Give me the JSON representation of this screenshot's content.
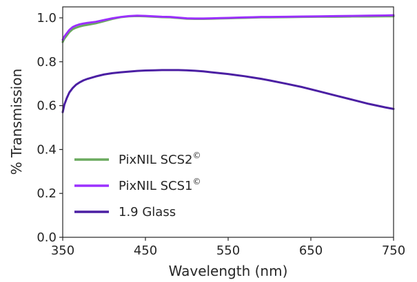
{
  "chart_data": {
    "type": "line",
    "xlabel": "Wavelength (nm)",
    "ylabel": "% Transmission",
    "xlim": [
      350,
      750
    ],
    "ylim": [
      0.0,
      1.05
    ],
    "xticks": [
      "350",
      "450",
      "550",
      "650",
      "750"
    ],
    "yticks": [
      "0.0",
      "0.2",
      "0.4",
      "0.6",
      "0.8",
      "1.0"
    ],
    "grid": false,
    "legend_position": "lower-left",
    "series": [
      {
        "name": "PixNIL SCS2",
        "name_superscript": "©",
        "color": "#6aaa5e",
        "x": [
          350,
          352,
          355,
          358,
          362,
          366,
          370,
          375,
          380,
          390,
          400,
          410,
          420,
          430,
          440,
          450,
          460,
          470,
          480,
          490,
          500,
          510,
          520,
          530,
          540,
          550,
          560,
          570,
          580,
          590,
          600,
          620,
          640,
          660,
          680,
          700,
          720,
          740,
          750
        ],
        "y": [
          0.89,
          0.905,
          0.92,
          0.935,
          0.948,
          0.955,
          0.96,
          0.965,
          0.968,
          0.975,
          0.985,
          0.995,
          1.003,
          1.007,
          1.008,
          1.007,
          1.005,
          1.003,
          1.002,
          0.999,
          0.996,
          0.995,
          0.995,
          0.996,
          0.997,
          0.998,
          0.999,
          1.0,
          1.001,
          1.002,
          1.002,
          1.003,
          1.004,
          1.005,
          1.005,
          1.006,
          1.006,
          1.007,
          1.007
        ]
      },
      {
        "name": "PixNIL SCS1",
        "name_superscript": "©",
        "color": "#9b30ff",
        "x": [
          350,
          352,
          355,
          358,
          362,
          366,
          370,
          375,
          380,
          390,
          400,
          410,
          420,
          430,
          440,
          450,
          460,
          470,
          480,
          490,
          500,
          510,
          520,
          530,
          540,
          550,
          560,
          570,
          580,
          590,
          600,
          620,
          640,
          660,
          680,
          700,
          720,
          740,
          750
        ],
        "y": [
          0.9,
          0.915,
          0.93,
          0.945,
          0.958,
          0.965,
          0.97,
          0.974,
          0.977,
          0.982,
          0.99,
          0.998,
          1.004,
          1.008,
          1.01,
          1.009,
          1.007,
          1.005,
          1.004,
          1.001,
          0.998,
          0.997,
          0.997,
          0.998,
          0.999,
          1.0,
          1.001,
          1.002,
          1.003,
          1.004,
          1.004,
          1.005,
          1.006,
          1.007,
          1.008,
          1.009,
          1.01,
          1.011,
          1.012
        ]
      },
      {
        "name": "1.9 Glass",
        "name_superscript": "",
        "color": "#4b1fa3",
        "x": [
          350,
          352,
          355,
          358,
          362,
          366,
          370,
          375,
          380,
          390,
          400,
          410,
          420,
          430,
          440,
          450,
          460,
          470,
          480,
          490,
          500,
          510,
          520,
          530,
          540,
          550,
          560,
          570,
          580,
          590,
          600,
          620,
          640,
          660,
          680,
          700,
          720,
          740,
          750
        ],
        "y": [
          0.57,
          0.605,
          0.635,
          0.66,
          0.68,
          0.695,
          0.705,
          0.715,
          0.722,
          0.733,
          0.742,
          0.748,
          0.752,
          0.755,
          0.758,
          0.76,
          0.761,
          0.762,
          0.762,
          0.762,
          0.761,
          0.759,
          0.756,
          0.752,
          0.748,
          0.744,
          0.739,
          0.734,
          0.728,
          0.722,
          0.715,
          0.7,
          0.684,
          0.665,
          0.646,
          0.627,
          0.608,
          0.592,
          0.585
        ]
      }
    ]
  },
  "colors": {
    "axis": "#262626",
    "background": "#ffffff"
  }
}
